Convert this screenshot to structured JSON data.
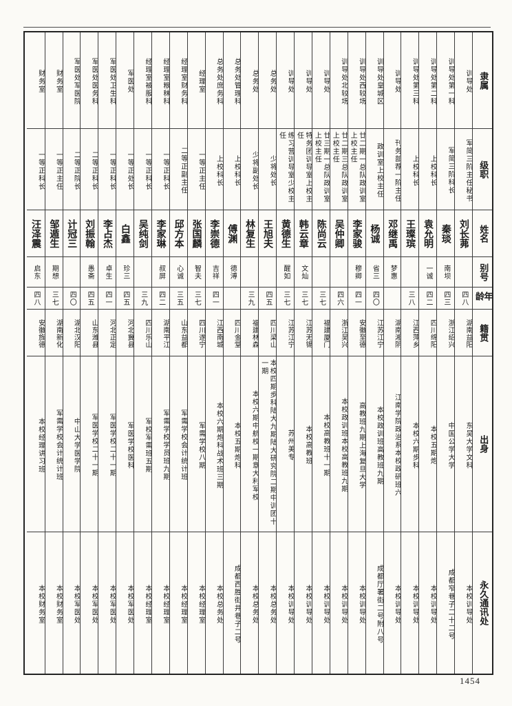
{
  "page": {
    "number": "1454"
  },
  "table": {
    "header": {
      "affiliation": "隶属",
      "rank": "级职",
      "name": "姓名",
      "alias": "别号",
      "age": "年龄",
      "native_place": "籍贯",
      "education": "出身",
      "address": "永久通讯处"
    },
    "persons": [
      {
        "affiliation": "训导处",
        "rank": "军简三阶主任秘书",
        "name": "刘长茀",
        "alias": "",
        "age": "四八",
        "native_place": "湖南益阳",
        "education": "东吴大学文科",
        "address": "本校训导处"
      },
      {
        "affiliation": "训导处第一科",
        "rank": "军简三阶科长",
        "name": "秦琰",
        "alias": "南坝",
        "age": "四三",
        "native_place": "浙江绍兴",
        "education": "中国公学大学",
        "address": "成都窄巷子二十二号"
      },
      {
        "affiliation": "训导处第二科",
        "rank": "上校科长",
        "name": "袁允明",
        "alias": "一诚",
        "age": "四二",
        "native_place": "四川绵阳",
        "education": "本校五期炮",
        "address": "本校训导处"
      },
      {
        "affiliation": "训导处第三科",
        "rank": "上校科长",
        "name": "王璨瑸",
        "alias": "",
        "age": "三八",
        "native_place": "江西萍乡",
        "education": "本校六期步科",
        "address": "本校训导处"
      },
      {
        "affiliation": "训导处",
        "rank": "刊务部荐一阶主任",
        "name": "邓继禹",
        "alias": "梦惠",
        "age": "",
        "native_place": "湖南湘阴",
        "education": "江南学院政治系本校政研班六",
        "address": "本校训导处"
      },
      {
        "affiliation": "训导处皇城区",
        "rank": "政训室上校主任",
        "name": "杨诚",
        "alias": "省三",
        "age": "四〇",
        "native_place": "江苏江宁",
        "education": "本校政训班高教班九期",
        "address": "成都厅署街二号附八号"
      },
      {
        "affiliation": "训导处西较场",
        "rank": "廿二期一总队政训室上校主任",
        "name": "李家骏",
        "alias": "穆卿",
        "age": "四一",
        "native_place": "安徽至德",
        "education": "高教班九期上海复旦大学",
        "address": "本校训导处"
      },
      {
        "affiliation": "训导处北较场",
        "rank": "廿二期三总队政训室上校主任",
        "name": "吴仲卿",
        "alias": "",
        "age": "四六",
        "native_place": "浙江吴兴",
        "education": "本校政训班本校高教班九期",
        "address": "本校训导处"
      },
      {
        "affiliation": "训导处",
        "rank": "廿三期一总队政训室上校主任",
        "name": "陈尚云",
        "alias": "",
        "age": "三七",
        "native_place": "福建厦门",
        "education": "本校高教班十一期",
        "address": "本校训导处"
      },
      {
        "affiliation": "训导处",
        "rank": "特务团训导室上校主任",
        "name": "韩云章",
        "alias": "文灿",
        "age": "三七",
        "native_place": "江苏无锡",
        "education": "本校高教班",
        "address": "本校训导处"
      },
      {
        "affiliation": "训导处",
        "rank": "练习营训导室少校主任",
        "name": "黄德生",
        "alias": "醒如",
        "age": "三七",
        "native_place": "江苏江宁",
        "education": "苏州美专",
        "address": "本校训导处"
      },
      {
        "affiliation": "总务处",
        "rank": "少将处长",
        "name": "王旭夫",
        "alias": "",
        "age": "四五",
        "native_place": "四川梁山",
        "education": "本校四期步科陆大九期陆大研究院二期中训团十一期",
        "address": "本校总务处"
      },
      {
        "affiliation": "总务处",
        "rank": "少将副处长",
        "name": "林复生",
        "alias": "",
        "age": "三九",
        "native_place": "福建林森",
        "education": "本校六期中航校一期意大利军校",
        "address": "本校总务处"
      },
      {
        "affiliation": "总务处管理科",
        "rank": "上校科长",
        "name": "傅渊",
        "alias": "德溥",
        "age": "",
        "native_place": "四川金堂",
        "education": "本校五期炮科",
        "address": "成都西胜街井巷子二号"
      },
      {
        "affiliation": "总务处庶务科",
        "rank": "上校科长",
        "name": "李崇德",
        "alias": "吉祥",
        "age": "四一",
        "native_place": "江西南城",
        "education": "本校六期炮科战术班三期",
        "address": "本校总务处"
      },
      {
        "affiliation": "经理室",
        "rank": "一等正主任",
        "name": "张国麟",
        "alias": "智夫",
        "age": "三七",
        "native_place": "四川遂宁",
        "education": "军需学校八期",
        "address": "本校经理室"
      },
      {
        "affiliation": "经理室财务科",
        "rank": "二等正副主任",
        "name": "邱方本",
        "alias": "心诚",
        "age": "三五",
        "native_place": "山东益都",
        "education": "军需学校会计统计班",
        "address": "本校经理室"
      },
      {
        "affiliation": "经理室粮秣科",
        "rank": "一等正科长",
        "name": "李家琳",
        "alias": "叔屏",
        "age": "四二",
        "native_place": "湖南平江",
        "education": "军需学校学员班九期",
        "address": "本校经理室"
      },
      {
        "affiliation": "经理室被服科",
        "rank": "一等正科长",
        "name": "吴纯剑",
        "alias": "",
        "age": "三九",
        "native_place": "四川乐山",
        "education": "军校军需班五期",
        "address": "本校经理室"
      },
      {
        "affiliation": "军医处",
        "rank": "一等正处长",
        "name": "白鑫",
        "alias": "珍三",
        "age": "四五",
        "native_place": "河北冀县",
        "education": "军医学校医科",
        "address": "本校军医处"
      },
      {
        "affiliation": "军医处卫生科",
        "rank": "一等正科长",
        "name": "李占杰",
        "alias": "卓生",
        "age": "四一",
        "native_place": "河北正定",
        "education": "军医学校二十一期",
        "address": "本校军医处"
      },
      {
        "affiliation": "军医处医务科",
        "rank": "二等正科长",
        "name": "刘振翰",
        "alias": "愚斋",
        "age": "四五",
        "native_place": "山东潍县",
        "education": "军医学校二十一期",
        "address": "本校军医处"
      },
      {
        "affiliation": "军医处军医院",
        "rank": "二等正院长",
        "name": "计冠三",
        "alias": "",
        "age": "四〇",
        "native_place": "湖北汉阳",
        "education": "中山大学医学院",
        "address": "本校军医处"
      },
      {
        "affiliation": "财务室",
        "rank": "一等正主任",
        "name": "邹遁生",
        "alias": "期想",
        "age": "三七",
        "native_place": "湖南新化",
        "education": "军需学校会计统计班",
        "address": "本校财务室"
      },
      {
        "affiliation": "财务室",
        "rank": "一等正科长",
        "name": "汪泽震",
        "alias": "启东",
        "age": "四八",
        "native_place": "安徽旌德",
        "education": "本校经理讲习班",
        "address": "本校财务室"
      }
    ]
  }
}
